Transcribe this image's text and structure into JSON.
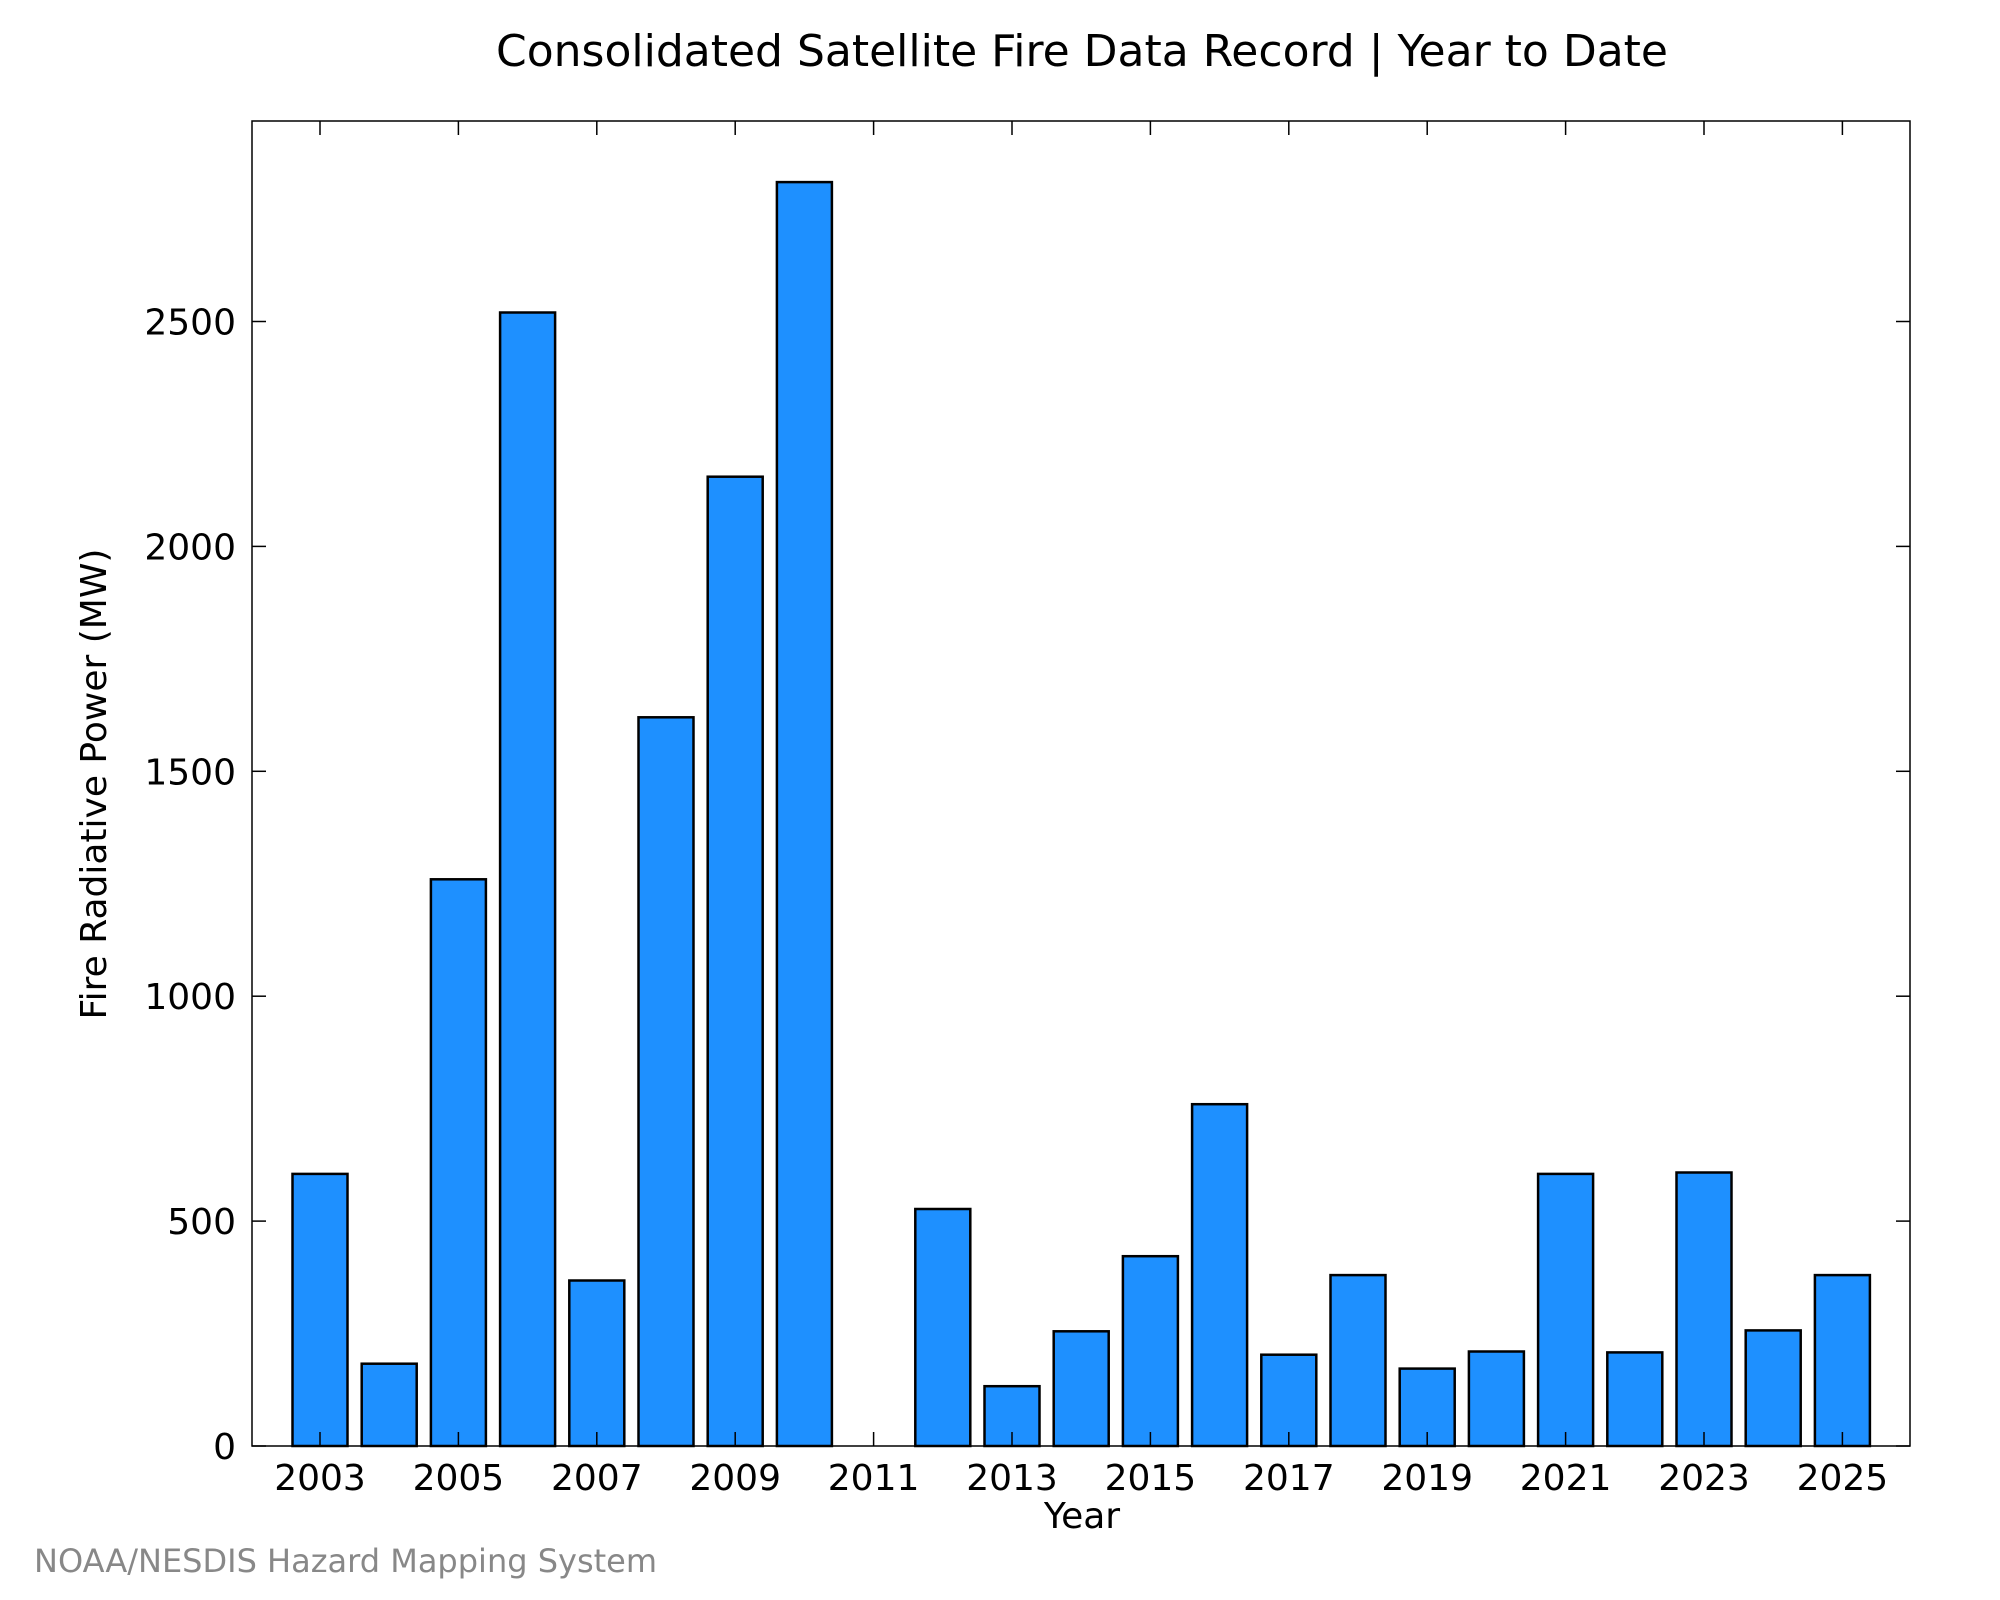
{
  "chart_data": {
    "type": "bar",
    "title": "Consolidated Satellite Fire Data Record | Year to Date",
    "xlabel": "Year",
    "ylabel": "Fire Radiative Power (MW)",
    "credit": "NOAA/NESDIS Hazard Mapping System",
    "categories": [
      "2003",
      "2004",
      "2005",
      "2006",
      "2007",
      "2008",
      "2009",
      "2010",
      "2011",
      "2012",
      "2013",
      "2014",
      "2015",
      "2016",
      "2017",
      "2018",
      "2019",
      "2020",
      "2021",
      "2022",
      "2023",
      "2024",
      "2025"
    ],
    "values": [
      605,
      183,
      1260,
      2520,
      368,
      1620,
      2155,
      2810,
      0,
      527,
      133,
      255,
      422,
      760,
      203,
      380,
      172,
      210,
      605,
      208,
      608,
      257,
      380
    ],
    "x_tick_labels": [
      "2003",
      "2005",
      "2007",
      "2009",
      "2011",
      "2013",
      "2015",
      "2017",
      "2019",
      "2021",
      "2023",
      "2025"
    ],
    "y_ticks": [
      0,
      500,
      1000,
      1500,
      2000,
      2500
    ],
    "y_tick_labels": [
      "0",
      "500",
      "1000",
      "1500",
      "2000",
      "2500"
    ],
    "ylim": [
      0,
      2950
    ],
    "grid": false,
    "colors": {
      "bar_fill": "#1e90ff",
      "bar_stroke": "#000000",
      "axis": "#000000",
      "credit": "#888888"
    }
  }
}
